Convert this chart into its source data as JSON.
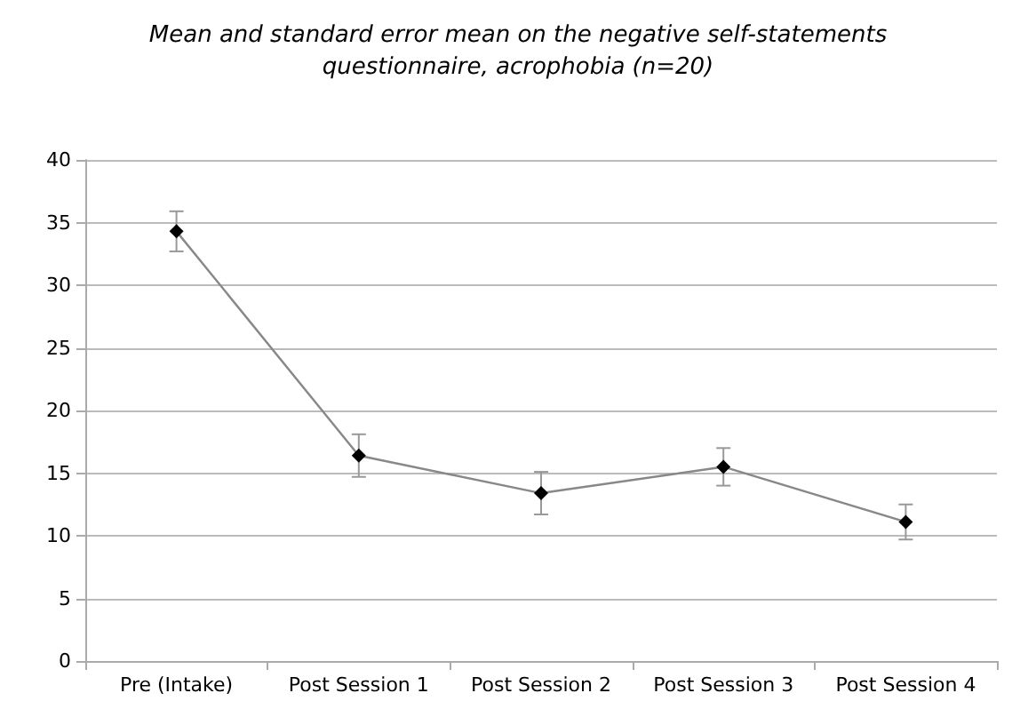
{
  "chart_data": {
    "type": "line",
    "title": "Mean and standard error mean on the negative self-statements\nquestionnaire, acrophobia (n=20)",
    "categories": [
      "Pre (Intake)",
      "Post Session 1",
      "Post Session 2",
      "Post Session 3",
      "Post Session 4"
    ],
    "series": [
      {
        "color": "#888888",
        "values": [
          34.3,
          16.4,
          13.4,
          15.5,
          11.1
        ],
        "errors": [
          1.6,
          1.7,
          1.7,
          1.5,
          1.4
        ]
      }
    ],
    "ylim": [
      0,
      40
    ],
    "yticks": [
      0,
      5,
      10,
      15,
      20,
      25,
      30,
      35,
      40
    ],
    "grid": "y",
    "marker": "diamond",
    "line_style": "solid"
  }
}
